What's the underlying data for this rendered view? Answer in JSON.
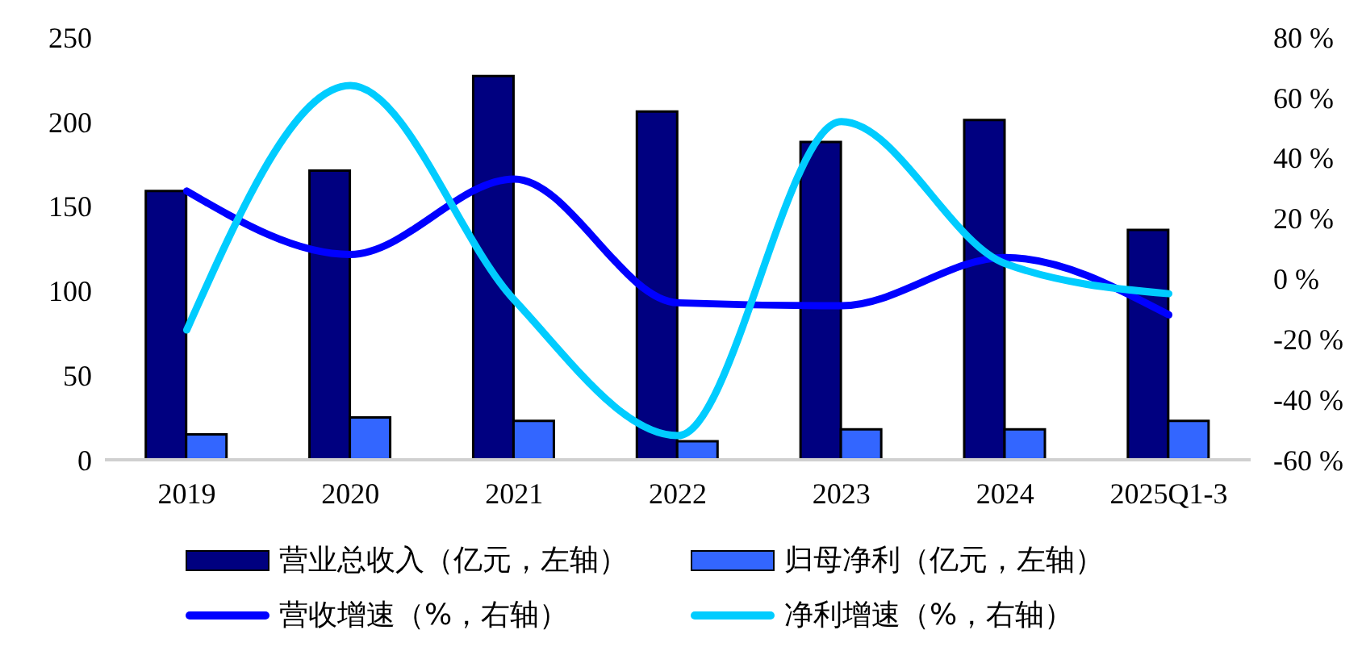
{
  "chart_data": {
    "type": "bar",
    "categories": [
      "2019",
      "2020",
      "2021",
      "2022",
      "2023",
      "2024",
      "2025Q1-3"
    ],
    "series": [
      {
        "name": "营业总收入（亿元，左轴）",
        "color": "#000080",
        "values": [
          159,
          171,
          227,
          206,
          188,
          201,
          136
        ]
      },
      {
        "name": "归母净利（亿元，左轴）",
        "color": "#3366ff",
        "values": [
          15,
          25,
          23,
          11,
          18,
          18,
          23
        ]
      },
      {
        "name": "营收增速（%，右轴）",
        "type": "line",
        "axis": "y2",
        "color": "#0000ff",
        "values": [
          29,
          8,
          33,
          -8,
          -9,
          7,
          -12
        ]
      },
      {
        "name": "净利增速（%，右轴）",
        "type": "line",
        "axis": "y2",
        "color": "#00ccff",
        "values": [
          -17,
          64,
          -7,
          -52,
          52,
          5,
          -5
        ]
      }
    ],
    "ylim": [
      0,
      250
    ],
    "yticks": [
      0,
      50,
      100,
      150,
      200,
      250
    ],
    "y2lim": [
      -60,
      80
    ],
    "y2ticks": [
      {
        "value": -60,
        "label": "-60 %"
      },
      {
        "value": -40,
        "label": "-40 %"
      },
      {
        "value": -20,
        "label": "-20 %"
      },
      {
        "value": 0,
        "label": "0 %"
      },
      {
        "value": 20,
        "label": "20 %"
      },
      {
        "value": 40,
        "label": "40 %"
      },
      {
        "value": 60,
        "label": "60 %"
      },
      {
        "value": 80,
        "label": "80 %"
      }
    ],
    "grid": false,
    "legend": "bottom",
    "marker": "none",
    "line_style": "solid"
  }
}
